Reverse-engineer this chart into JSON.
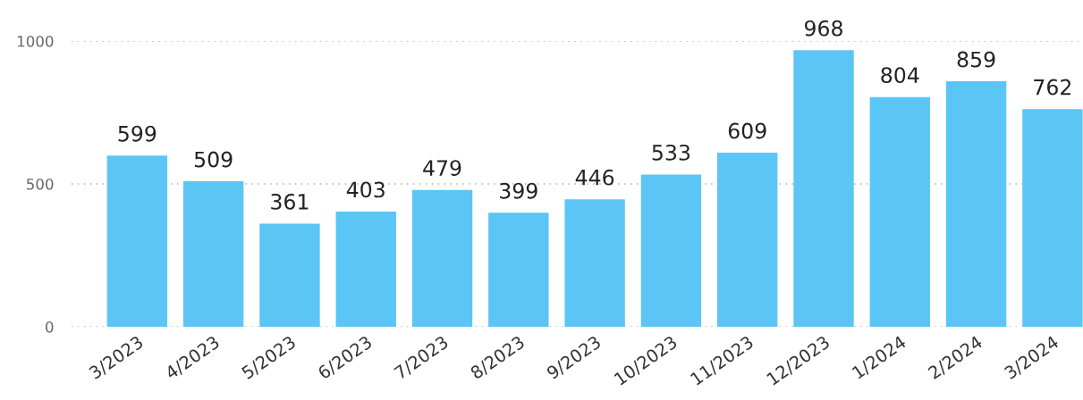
{
  "chart_data": {
    "type": "bar",
    "categories": [
      "3/2023",
      "4/2023",
      "5/2023",
      "6/2023",
      "7/2023",
      "8/2023",
      "9/2023",
      "10/2023",
      "11/2023",
      "12/2023",
      "1/2024",
      "2/2024",
      "3/2024"
    ],
    "values": [
      599,
      509,
      361,
      403,
      479,
      399,
      446,
      533,
      609,
      968,
      804,
      859,
      762
    ],
    "color": "#5bc5f5",
    "ylim": [
      0,
      1000
    ],
    "yticks": [
      0,
      500,
      1000
    ],
    "grid": "y",
    "data_labels": true,
    "legend": false
  }
}
